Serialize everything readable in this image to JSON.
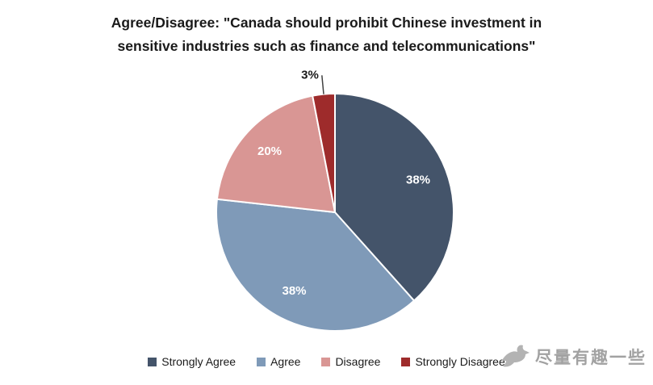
{
  "header": {
    "line1": "Agree/Disagree: \"Canada should prohibit Chinese investment in",
    "line2": "sensitive industries such as finance and telecommunications\""
  },
  "chart_data": {
    "type": "pie",
    "title": "Agree/Disagree: \"Canada should prohibit Chinese investment in sensitive industries such as finance and telecommunications\"",
    "categories": [
      "Strongly Agree",
      "Agree",
      "Disagree",
      "Strongly Disagree"
    ],
    "values": [
      38,
      38,
      20,
      3
    ],
    "labels": [
      "38%",
      "38%",
      "20%",
      "3%"
    ],
    "colors": [
      "#44546a",
      "#7f9ab8",
      "#d99694",
      "#9e2b2b"
    ],
    "start_angle": "top",
    "direction": "clockwise",
    "slice_border_color": "#ffffff",
    "legend_position": "bottom",
    "label_color_inside": "#ffffff",
    "label_color_outside": "#1a1a1a"
  },
  "watermark": {
    "text": "尽量有趣一些"
  }
}
